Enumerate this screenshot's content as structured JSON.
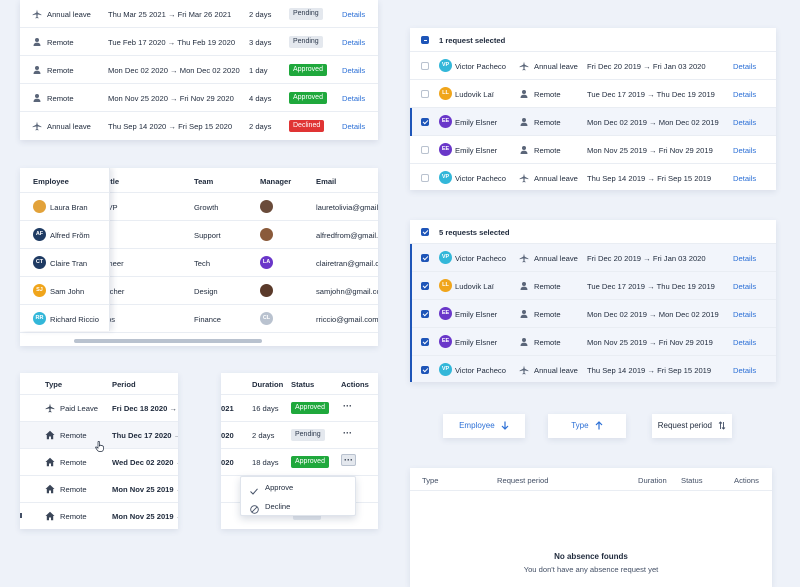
{
  "colors": {
    "accent": "#1e55b8",
    "link": "#2b6fd6",
    "approved": "#1fa83c",
    "declined": "#e03434",
    "pending": "#e4e8ee"
  },
  "top_table": {
    "rows": [
      {
        "type": "Annual leave",
        "type_icon": "plane-icon",
        "period": "Thu Mar 25 2021 → Fri Mar 26 2021",
        "duration": "2 days",
        "status": "Pending",
        "status_kind": "pending",
        "action": "Details"
      },
      {
        "type": "Remote",
        "type_icon": "person-icon",
        "period": "Tue Feb 17 2020 → Thu Feb 19 2020",
        "duration": "3 days",
        "status": "Pending",
        "status_kind": "pending",
        "action": "Details"
      },
      {
        "type": "Remote",
        "type_icon": "person-icon",
        "period": "Mon Dec 02 2020 → Mon Dec 02 2020",
        "duration": "1 day",
        "status": "Approved",
        "status_kind": "approved",
        "action": "Details"
      },
      {
        "type": "Remote",
        "type_icon": "person-icon",
        "period": "Mon Nov 25 2020 → Fri Nov 29 2020",
        "duration": "4 days",
        "status": "Approved",
        "status_kind": "approved",
        "action": "Details"
      },
      {
        "type": "Annual leave",
        "type_icon": "plane-icon",
        "period": "Thu Sep 14 2020 → Fri Sep 15 2020",
        "duration": "2 days",
        "status": "Declined",
        "status_kind": "declined",
        "action": "Details"
      }
    ]
  },
  "employee_table": {
    "headers": [
      "Employee",
      "Job title",
      "Team",
      "Manager",
      "Email"
    ],
    "rows": [
      {
        "name": "Laura Bran",
        "avatar": "",
        "avatar_color": "#e2a23a",
        "job": "Marketing VP",
        "team": "Growth",
        "manager_color": "#6a4b3a",
        "email": "lauretolivia@gmail.com"
      },
      {
        "name": "Alfred Frõm",
        "avatar": "AF",
        "avatar_color": "#1f3b63",
        "job": "Analyst",
        "team": "Support",
        "manager_color": "#8a5a3a",
        "email": "alfredfrom@gmail.com"
      },
      {
        "name": "Claire Tran",
        "avatar": "CT",
        "avatar_color": "#1f3b63",
        "job": "Senior engineer",
        "team": "Tech",
        "manager_initials": "LA",
        "manager_color": "#6a37c9",
        "email": "clairetran@gmail.com"
      },
      {
        "name": "Sam John",
        "avatar": "SJ",
        "avatar_color": "#f0a51b",
        "job": "User researcher",
        "team": "Design",
        "manager_color": "#5a3a2a",
        "email": "samjohn@gmail.com"
      },
      {
        "name": "Richard Riccio",
        "avatar": "RR",
        "avatar_color": "#33b7d9",
        "job": "Finance Ops",
        "team": "Finance",
        "manager_initials": "CL",
        "manager_color": "#b9c2cf",
        "email": "rriccio@gmail.com"
      }
    ]
  },
  "left_type_table": {
    "headers": [
      "Type",
      "Period"
    ],
    "rows": [
      {
        "type": "Paid Leave",
        "icon": "plane-icon",
        "period": "Fri Dec 18 2020 → S"
      },
      {
        "type": "Remote",
        "icon": "home-icon",
        "period": "Thu Dec 17 2020 →"
      },
      {
        "type": "Remote",
        "icon": "home-icon",
        "period": "Wed Dec 02 2020 →"
      },
      {
        "type": "Remote",
        "icon": "home-icon",
        "period": "Mon Nov 25 2019 →"
      },
      {
        "type": "Remote",
        "icon": "home-icon",
        "period": "Mon Nov 25 2019 →"
      }
    ]
  },
  "duration_table": {
    "headers": [
      "Duration",
      "Status",
      "Actions"
    ],
    "rows": [
      {
        "cut": "021",
        "duration": "16 days",
        "status": "Approved",
        "status_kind": "approved"
      },
      {
        "cut": "020",
        "duration": "2 days",
        "status": "Pending",
        "status_kind": "pending"
      },
      {
        "cut": "020",
        "duration": "18 days",
        "status": "Approved",
        "status_kind": "approved"
      }
    ],
    "menu": {
      "approve": "Approve",
      "decline": "Decline"
    },
    "actions_glyph": "···"
  },
  "one_selected": {
    "header": "1 request selected",
    "rows": [
      {
        "checked": false,
        "avatar": "VP",
        "avatar_color": "#33b7d9",
        "name": "Victor Pacheco",
        "type": "Annual leave",
        "type_icon": "plane-icon",
        "period": "Fri Dec 20 2019 → Fri Jan 03 2020",
        "action": "Details"
      },
      {
        "checked": false,
        "avatar": "LL",
        "avatar_color": "#f0a51b",
        "name": "Ludovik Laï",
        "type": "Remote",
        "type_icon": "person-icon",
        "period": "Tue Dec 17 2019 → Thu Dec 19 2019",
        "action": "Details"
      },
      {
        "checked": true,
        "avatar": "EE",
        "avatar_color": "#6a37c9",
        "name": "Emily Elsner",
        "type": "Remote",
        "type_icon": "person-icon",
        "period": "Mon Dec 02 2019 → Mon Dec 02 2019",
        "action": "Details"
      },
      {
        "checked": false,
        "avatar": "EE",
        "avatar_color": "#6a37c9",
        "name": "Emily Elsner",
        "type": "Remote",
        "type_icon": "person-icon",
        "period": "Mon Nov 25 2019 → Fri Nov 29 2019",
        "action": "Details"
      },
      {
        "checked": false,
        "avatar": "VP",
        "avatar_color": "#33b7d9",
        "name": "Victor Pacheco",
        "type": "Annual leave",
        "type_icon": "plane-icon",
        "period": "Thu Sep 14 2019 → Fri Sep 15 2019",
        "action": "Details"
      }
    ]
  },
  "five_selected": {
    "header": "5 requests selected",
    "rows": [
      {
        "avatar": "VP",
        "avatar_color": "#33b7d9",
        "name": "Victor Pacheco",
        "type": "Annual leave",
        "type_icon": "plane-icon",
        "period": "Fri Dec 20 2019 → Fri Jan 03 2020",
        "action": "Details"
      },
      {
        "avatar": "LL",
        "avatar_color": "#f0a51b",
        "name": "Ludovik Laï",
        "type": "Remote",
        "type_icon": "person-icon",
        "period": "Tue Dec 17 2019 → Thu Dec 19 2019",
        "action": "Details"
      },
      {
        "avatar": "EE",
        "avatar_color": "#6a37c9",
        "name": "Emily Elsner",
        "type": "Remote",
        "type_icon": "person-icon",
        "period": "Mon Dec 02 2019 → Mon Dec 02 2019",
        "action": "Details"
      },
      {
        "avatar": "EE",
        "avatar_color": "#6a37c9",
        "name": "Emily Elsner",
        "type": "Remote",
        "type_icon": "person-icon",
        "period": "Mon Nov 25 2019 → Fri Nov 29 2019",
        "action": "Details"
      },
      {
        "avatar": "VP",
        "avatar_color": "#33b7d9",
        "name": "Victor Pacheco",
        "type": "Annual leave",
        "type_icon": "plane-icon",
        "period": "Thu Sep 14 2019 → Fri Sep 15 2019",
        "action": "Details"
      }
    ]
  },
  "sort_buttons": {
    "employee": {
      "label": "Employee",
      "icon": "arrow-down-icon"
    },
    "type": {
      "label": "Type",
      "icon": "arrow-up-icon"
    },
    "period": {
      "label": "Request period",
      "icon": "sort-icon"
    }
  },
  "empty_table": {
    "headers": [
      "Type",
      "Request period",
      "Duration",
      "Status",
      "Actions"
    ],
    "title": "No absence founds",
    "subtitle": "You don't have any absence request yet"
  }
}
